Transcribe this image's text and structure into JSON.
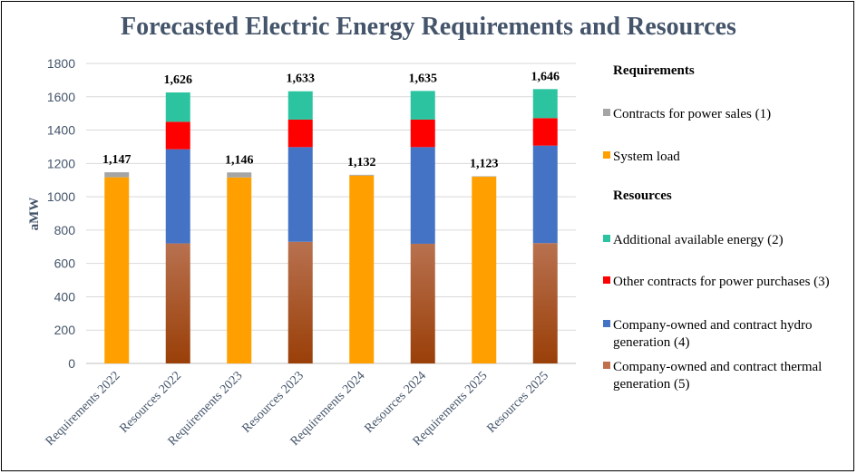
{
  "chart_data": {
    "type": "bar",
    "stacked": true,
    "title": "Forecasted Electric Energy Requirements and Resources",
    "ylabel": "aMW",
    "xlabel": "",
    "ylim": [
      0,
      1800
    ],
    "yticks": [
      0,
      200,
      400,
      600,
      800,
      1000,
      1200,
      1400,
      1600,
      1800
    ],
    "grid": true,
    "legend_position": "right",
    "categories": [
      "Requirements 2022",
      "Resources 2022",
      "Requirements 2023",
      "Resources 2023",
      "Requirements 2024",
      "Resources 2024",
      "Requirements 2025",
      "Resources 2025"
    ],
    "totals": [
      "1,147",
      "1,626",
      "1,146",
      "1,633",
      "1,132",
      "1,635",
      "1,123",
      "1,646"
    ],
    "legend_groups": [
      {
        "heading": "Requirements",
        "series_names": [
          "Contracts for power sales (1)",
          "System load"
        ]
      },
      {
        "heading": "Resources",
        "series_names": [
          "Additional available energy (2)",
          "Other contracts for power purchases (3)",
          "Company-owned and contract hydro generation (4)",
          "Company-owned and contract thermal generation (5)"
        ]
      }
    ],
    "series": [
      {
        "name": "Company-owned and contract thermal generation (5)",
        "color": "#c0714a",
        "values": [
          0,
          720,
          0,
          730,
          0,
          718,
          0,
          722
        ]
      },
      {
        "name": "Company-owned and contract hydro generation (4)",
        "color": "#4472c4",
        "values": [
          0,
          565,
          0,
          568,
          0,
          580,
          0,
          585
        ]
      },
      {
        "name": "Other contracts for power purchases (3)",
        "color": "#ff0000",
        "values": [
          0,
          165,
          0,
          165,
          0,
          165,
          0,
          165
        ]
      },
      {
        "name": "Additional available energy (2)",
        "color": "#2cc4a0",
        "values": [
          0,
          176,
          0,
          170,
          0,
          172,
          0,
          174
        ]
      },
      {
        "name": "System load",
        "color": "#ffa000",
        "values": [
          1117,
          0,
          1116,
          0,
          1127,
          0,
          1120,
          0
        ]
      },
      {
        "name": "Contracts for power sales (1)",
        "color": "#a5a5a5",
        "values": [
          30,
          0,
          30,
          0,
          5,
          0,
          3,
          0
        ]
      }
    ]
  }
}
